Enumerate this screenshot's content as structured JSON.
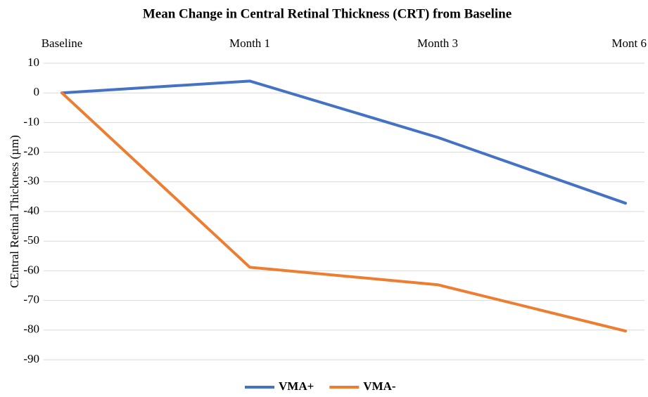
{
  "chart_data": {
    "type": "line",
    "title": "Mean Change in Central Retinal Thickness (CRT) from Baseline",
    "y_label": "CEntral Retinal Thickness (µm)",
    "categories": [
      "Baseline",
      "Month 1",
      "Month 3",
      "Mont 6"
    ],
    "series": [
      {
        "name": "VMA+",
        "color": "#4472c4",
        "values": [
          0,
          4,
          -15,
          -37.2
        ]
      },
      {
        "name": "VMA-",
        "color": "#ed7d31",
        "values": [
          0,
          -58.8,
          -64.7,
          -80.3
        ]
      }
    ],
    "ylim": [
      -90,
      10
    ],
    "yticks": [
      10,
      0,
      -10,
      -20,
      -30,
      -40,
      -50,
      -60,
      -70,
      -80,
      -90
    ],
    "grid": true
  }
}
